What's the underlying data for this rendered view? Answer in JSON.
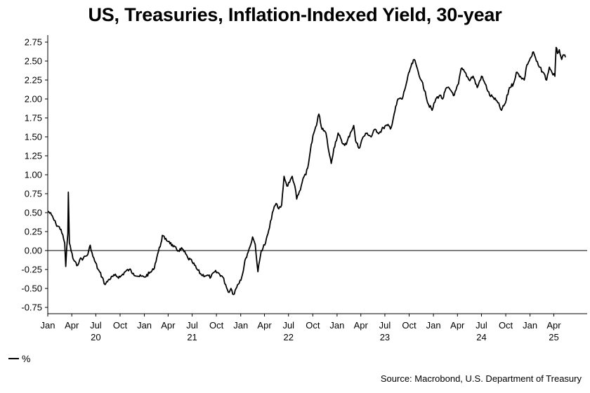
{
  "title": "US, Treasuries, Inflation-Indexed Yield, 30-year",
  "legend": {
    "label": "%"
  },
  "source": "Source: Macrobond, U.S. Department of Treasury",
  "chart_data": {
    "type": "line",
    "title": "US, Treasuries, Inflation-Indexed Yield, 30-year",
    "ylabel": "%",
    "xlabel": "",
    "ylim": [
      -0.8,
      2.85
    ],
    "grid": false,
    "zero_line": true,
    "legend_position": "bottom-left",
    "y_ticks": [
      "2.75",
      "2.50",
      "2.25",
      "2.00",
      "1.75",
      "1.50",
      "1.25",
      "1.00",
      "0.75",
      "0.50",
      "0.25",
      "0.00",
      "-0.25",
      "-0.50",
      "-0.75"
    ],
    "x_month_ticks": [
      {
        "date": "2020-01-01",
        "label": "Jan"
      },
      {
        "date": "2020-04-01",
        "label": "Apr"
      },
      {
        "date": "2020-07-01",
        "label": "Jul"
      },
      {
        "date": "2020-10-01",
        "label": "Oct"
      },
      {
        "date": "2021-01-01",
        "label": "Jan"
      },
      {
        "date": "2021-04-01",
        "label": "Apr"
      },
      {
        "date": "2021-07-01",
        "label": "Jul"
      },
      {
        "date": "2021-10-01",
        "label": "Oct"
      },
      {
        "date": "2022-01-01",
        "label": "Jan"
      },
      {
        "date": "2022-04-01",
        "label": "Apr"
      },
      {
        "date": "2022-07-01",
        "label": "Jul"
      },
      {
        "date": "2022-10-01",
        "label": "Oct"
      },
      {
        "date": "2023-01-01",
        "label": "Jan"
      },
      {
        "date": "2023-04-01",
        "label": "Apr"
      },
      {
        "date": "2023-07-01",
        "label": "Jul"
      },
      {
        "date": "2023-10-01",
        "label": "Oct"
      },
      {
        "date": "2024-01-01",
        "label": "Jan"
      },
      {
        "date": "2024-04-01",
        "label": "Apr"
      },
      {
        "date": "2024-07-01",
        "label": "Jul"
      },
      {
        "date": "2024-10-01",
        "label": "Oct"
      },
      {
        "date": "2025-01-01",
        "label": "Jan"
      },
      {
        "date": "2025-04-01",
        "label": "Apr"
      }
    ],
    "x_year_labels": [
      {
        "date": "2020-07-01",
        "label": "20"
      },
      {
        "date": "2021-07-01",
        "label": "21"
      },
      {
        "date": "2022-07-01",
        "label": "22"
      },
      {
        "date": "2023-07-01",
        "label": "23"
      },
      {
        "date": "2024-07-01",
        "label": "24"
      },
      {
        "date": "2025-04-01",
        "label": "25"
      }
    ],
    "series": [
      {
        "color": "#000000",
        "points": [
          [
            "2020-01-02",
            0.52
          ],
          [
            "2020-01-15",
            0.47
          ],
          [
            "2020-02-01",
            0.35
          ],
          [
            "2020-02-20",
            0.28
          ],
          [
            "2020-03-05",
            0.1
          ],
          [
            "2020-03-09",
            -0.21
          ],
          [
            "2020-03-13",
            0.05
          ],
          [
            "2020-03-17",
            0.22
          ],
          [
            "2020-03-19",
            0.77
          ],
          [
            "2020-03-23",
            0.1
          ],
          [
            "2020-04-05",
            -0.1
          ],
          [
            "2020-04-20",
            -0.2
          ],
          [
            "2020-05-01",
            -0.12
          ],
          [
            "2020-05-15",
            -0.1
          ],
          [
            "2020-06-01",
            -0.05
          ],
          [
            "2020-06-10",
            0.07
          ],
          [
            "2020-06-20",
            -0.08
          ],
          [
            "2020-07-10",
            -0.25
          ],
          [
            "2020-07-25",
            -0.35
          ],
          [
            "2020-08-05",
            -0.45
          ],
          [
            "2020-08-20",
            -0.38
          ],
          [
            "2020-09-10",
            -0.33
          ],
          [
            "2020-10-01",
            -0.35
          ],
          [
            "2020-10-20",
            -0.28
          ],
          [
            "2020-11-05",
            -0.25
          ],
          [
            "2020-11-20",
            -0.3
          ],
          [
            "2020-12-10",
            -0.34
          ],
          [
            "2021-01-01",
            -0.35
          ],
          [
            "2021-01-20",
            -0.3
          ],
          [
            "2021-02-05",
            -0.25
          ],
          [
            "2021-02-20",
            -0.05
          ],
          [
            "2021-03-05",
            0.1
          ],
          [
            "2021-03-10",
            0.2
          ],
          [
            "2021-03-20",
            0.15
          ],
          [
            "2021-04-05",
            0.12
          ],
          [
            "2021-04-20",
            0.05
          ],
          [
            "2021-05-10",
            0.0
          ],
          [
            "2021-05-25",
            0.02
          ],
          [
            "2021-06-15",
            -0.1
          ],
          [
            "2021-07-01",
            -0.15
          ],
          [
            "2021-07-20",
            -0.25
          ],
          [
            "2021-08-05",
            -0.32
          ],
          [
            "2021-08-25",
            -0.33
          ],
          [
            "2021-09-10",
            -0.35
          ],
          [
            "2021-09-25",
            -0.28
          ],
          [
            "2021-10-10",
            -0.3
          ],
          [
            "2021-10-25",
            -0.35
          ],
          [
            "2021-11-05",
            -0.45
          ],
          [
            "2021-11-15",
            -0.55
          ],
          [
            "2021-11-25",
            -0.5
          ],
          [
            "2021-12-05",
            -0.58
          ],
          [
            "2021-12-20",
            -0.45
          ],
          [
            "2022-01-05",
            -0.35
          ],
          [
            "2022-01-20",
            -0.1
          ],
          [
            "2022-02-05",
            0.05
          ],
          [
            "2022-02-15",
            0.18
          ],
          [
            "2022-02-25",
            0.08
          ],
          [
            "2022-03-07",
            -0.28
          ],
          [
            "2022-03-20",
            0.0
          ],
          [
            "2022-04-05",
            0.1
          ],
          [
            "2022-04-20",
            0.3
          ],
          [
            "2022-05-01",
            0.5
          ],
          [
            "2022-05-15",
            0.62
          ],
          [
            "2022-05-25",
            0.55
          ],
          [
            "2022-06-05",
            0.6
          ],
          [
            "2022-06-14",
            0.98
          ],
          [
            "2022-06-25",
            0.85
          ],
          [
            "2022-07-05",
            0.9
          ],
          [
            "2022-07-15",
            0.98
          ],
          [
            "2022-07-25",
            0.85
          ],
          [
            "2022-08-01",
            0.68
          ],
          [
            "2022-08-15",
            0.8
          ],
          [
            "2022-08-25",
            0.95
          ],
          [
            "2022-09-05",
            1.0
          ],
          [
            "2022-09-15",
            1.15
          ],
          [
            "2022-09-25",
            1.4
          ],
          [
            "2022-10-05",
            1.55
          ],
          [
            "2022-10-15",
            1.65
          ],
          [
            "2022-10-24",
            1.8
          ],
          [
            "2022-11-05",
            1.6
          ],
          [
            "2022-11-20",
            1.55
          ],
          [
            "2022-12-01",
            1.3
          ],
          [
            "2022-12-10",
            1.15
          ],
          [
            "2022-12-20",
            1.35
          ],
          [
            "2023-01-05",
            1.55
          ],
          [
            "2023-01-20",
            1.42
          ],
          [
            "2023-02-05",
            1.4
          ],
          [
            "2023-02-20",
            1.55
          ],
          [
            "2023-03-05",
            1.65
          ],
          [
            "2023-03-12",
            1.45
          ],
          [
            "2023-03-25",
            1.35
          ],
          [
            "2023-04-10",
            1.5
          ],
          [
            "2023-04-25",
            1.55
          ],
          [
            "2023-05-10",
            1.5
          ],
          [
            "2023-05-25",
            1.6
          ],
          [
            "2023-06-10",
            1.55
          ],
          [
            "2023-06-25",
            1.62
          ],
          [
            "2023-07-10",
            1.65
          ],
          [
            "2023-07-25",
            1.62
          ],
          [
            "2023-08-05",
            1.8
          ],
          [
            "2023-08-20",
            2.0
          ],
          [
            "2023-09-05",
            2.0
          ],
          [
            "2023-09-20",
            2.2
          ],
          [
            "2023-10-05",
            2.4
          ],
          [
            "2023-10-20",
            2.52
          ],
          [
            "2023-11-01",
            2.4
          ],
          [
            "2023-11-15",
            2.25
          ],
          [
            "2023-12-01",
            2.1
          ],
          [
            "2023-12-10",
            1.95
          ],
          [
            "2023-12-27",
            1.85
          ],
          [
            "2024-01-10",
            2.0
          ],
          [
            "2024-01-25",
            2.05
          ],
          [
            "2024-02-05",
            2.0
          ],
          [
            "2024-02-20",
            2.15
          ],
          [
            "2024-03-05",
            2.12
          ],
          [
            "2024-03-20",
            2.05
          ],
          [
            "2024-04-05",
            2.2
          ],
          [
            "2024-04-15",
            2.4
          ],
          [
            "2024-04-30",
            2.35
          ],
          [
            "2024-05-15",
            2.25
          ],
          [
            "2024-05-30",
            2.3
          ],
          [
            "2024-06-15",
            2.15
          ],
          [
            "2024-07-01",
            2.3
          ],
          [
            "2024-07-15",
            2.2
          ],
          [
            "2024-08-01",
            2.05
          ],
          [
            "2024-08-15",
            2.02
          ],
          [
            "2024-09-01",
            1.95
          ],
          [
            "2024-09-15",
            1.85
          ],
          [
            "2024-09-30",
            1.95
          ],
          [
            "2024-10-15",
            2.15
          ],
          [
            "2024-10-30",
            2.2
          ],
          [
            "2024-11-10",
            2.35
          ],
          [
            "2024-11-25",
            2.3
          ],
          [
            "2024-12-10",
            2.25
          ],
          [
            "2024-12-20",
            2.45
          ],
          [
            "2025-01-05",
            2.55
          ],
          [
            "2025-01-14",
            2.62
          ],
          [
            "2025-01-25",
            2.5
          ],
          [
            "2025-02-05",
            2.42
          ],
          [
            "2025-02-20",
            2.35
          ],
          [
            "2025-03-05",
            2.25
          ],
          [
            "2025-03-15",
            2.42
          ],
          [
            "2025-03-25",
            2.35
          ],
          [
            "2025-04-05",
            2.3
          ],
          [
            "2025-04-10",
            2.68
          ],
          [
            "2025-04-15",
            2.6
          ],
          [
            "2025-04-22",
            2.65
          ],
          [
            "2025-05-01",
            2.52
          ],
          [
            "2025-05-10",
            2.58
          ],
          [
            "2025-05-15",
            2.55
          ]
        ]
      }
    ]
  }
}
